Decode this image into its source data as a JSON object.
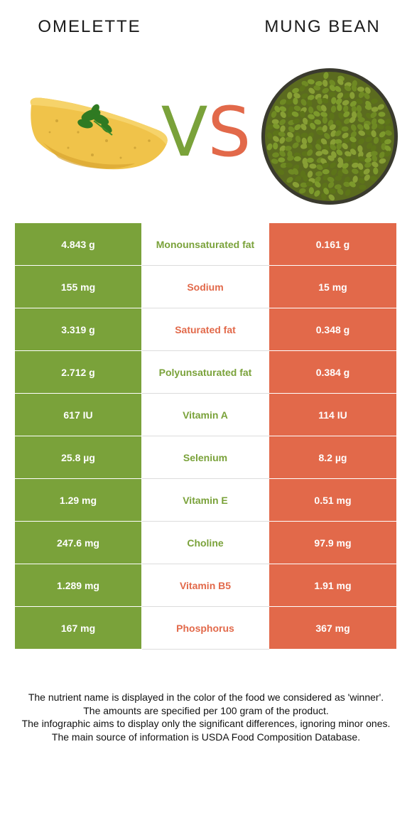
{
  "header": {
    "left_food": "OMELETTE",
    "right_food": "MUNG BEAN",
    "vs_v": "V",
    "vs_s": "S"
  },
  "colors": {
    "left_winner": "#7aa23a",
    "right_winner": "#e2694a"
  },
  "rows": [
    {
      "left": "4.843 g",
      "nutrient": "Monounsaturated fat",
      "right": "0.161 g",
      "winner": "left"
    },
    {
      "left": "155 mg",
      "nutrient": "Sodium",
      "right": "15 mg",
      "winner": "right"
    },
    {
      "left": "3.319 g",
      "nutrient": "Saturated fat",
      "right": "0.348 g",
      "winner": "right"
    },
    {
      "left": "2.712 g",
      "nutrient": "Polyunsaturated fat",
      "right": "0.384 g",
      "winner": "left"
    },
    {
      "left": "617 IU",
      "nutrient": "Vitamin A",
      "right": "114 IU",
      "winner": "left"
    },
    {
      "left": "25.8 µg",
      "nutrient": "Selenium",
      "right": "8.2 µg",
      "winner": "left"
    },
    {
      "left": "1.29 mg",
      "nutrient": "Vitamin E",
      "right": "0.51 mg",
      "winner": "left"
    },
    {
      "left": "247.6 mg",
      "nutrient": "Choline",
      "right": "97.9 mg",
      "winner": "left"
    },
    {
      "left": "1.289 mg",
      "nutrient": "Vitamin B5",
      "right": "1.91 mg",
      "winner": "right"
    },
    {
      "left": "167 mg",
      "nutrient": "Phosphorus",
      "right": "367 mg",
      "winner": "right"
    }
  ],
  "footnote": [
    "The nutrient name is displayed in the color of the food we considered as 'winner'.",
    "The amounts are specified per 100 gram of the product.",
    "The infographic aims to display only the significant differences, ignoring minor ones.",
    "The main source of information is USDA Food Composition Database."
  ]
}
